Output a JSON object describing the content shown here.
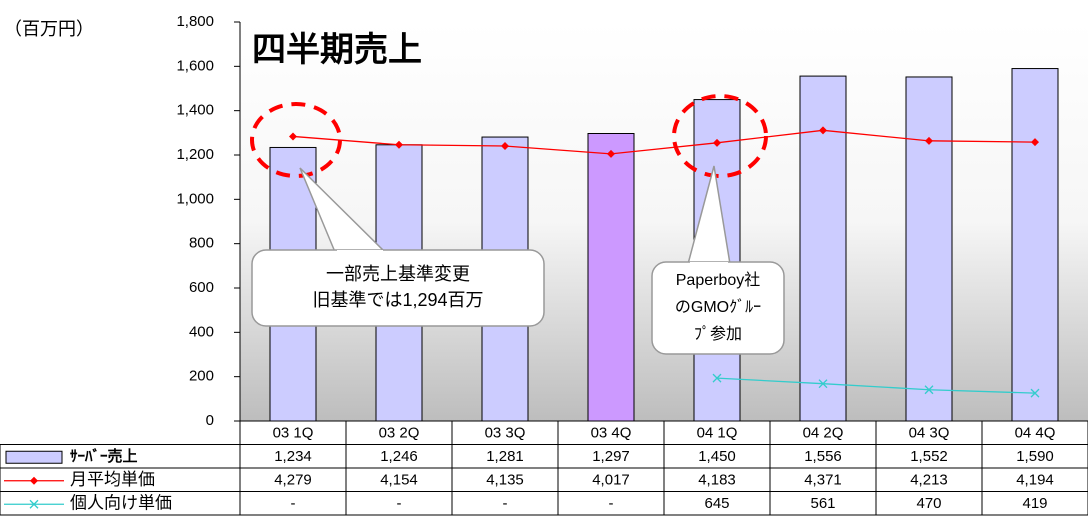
{
  "chart_data": {
    "type": "bar",
    "title": "四半期売上",
    "y_unit_label": "（百万円）",
    "categories": [
      "03 1Q",
      "03 2Q",
      "03 3Q",
      "03 4Q",
      "04 1Q",
      "04 2Q",
      "04 3Q",
      "04 4Q"
    ],
    "ylim": [
      0,
      1800
    ],
    "yticks": [
      0,
      200,
      400,
      600,
      800,
      {
        "value": 1000,
        "label": "1,000"
      },
      {
        "value": 1200,
        "label": "1,200"
      },
      {
        "value": 1400,
        "label": "1,400"
      },
      {
        "value": 1600,
        "label": "1,600"
      },
      {
        "value": 1800,
        "label": "1,800"
      }
    ],
    "y2lim": [
      0,
      6000
    ],
    "series": [
      {
        "name": "ｻｰﾊﾞｰ売上",
        "type": "bar",
        "color": "#ccccff",
        "colors": [
          "#ccccff",
          "#ccccff",
          "#ccccff",
          "#cc99ff",
          "#ccccff",
          "#ccccff",
          "#ccccff",
          "#ccccff"
        ],
        "values": [
          1234,
          1246,
          1281,
          1297,
          1450,
          1556,
          1552,
          1590
        ],
        "value_labels": [
          "1,234",
          "1,246",
          "1,281",
          "1,297",
          "1,450",
          "1,556",
          "1,552",
          "1,590"
        ]
      },
      {
        "name": "月平均単価",
        "type": "line",
        "axis": "y2",
        "color": "#ff0000",
        "values": [
          4279,
          4154,
          4135,
          4017,
          4183,
          4371,
          4213,
          4194
        ],
        "value_labels": [
          "4,279",
          "4,154",
          "4,135",
          "4,017",
          "4,183",
          "4,371",
          "4,213",
          "4,194"
        ]
      },
      {
        "name": "個人向け単価",
        "type": "line",
        "axis": "y2",
        "color": "#33cccc",
        "values": [
          null,
          null,
          null,
          null,
          645,
          561,
          470,
          419
        ],
        "value_labels": [
          "-",
          "-",
          "-",
          "-",
          "645",
          "561",
          "470",
          "419"
        ]
      }
    ],
    "annotations": [
      {
        "lines": [
          "一部売上基準変更",
          "旧基準では1,294百万"
        ]
      },
      {
        "lines": [
          "Paperboy社",
          "のGMOｸﾞﾙｰ",
          "ﾌﾟ参加"
        ]
      }
    ]
  }
}
